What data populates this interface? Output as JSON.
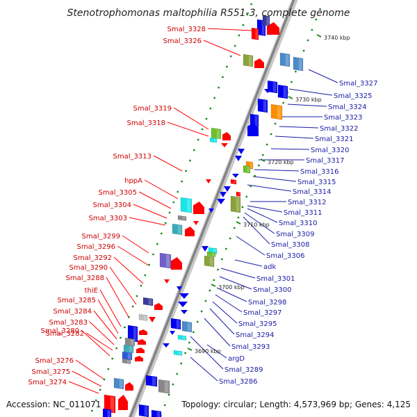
{
  "title": "Stenotrophomonas maltophilia R551-3, complete genome",
  "footer": {
    "accession": "Accession: NC_011071",
    "info": "Topology: circular; Length: 4,573,969 bp; Genes: 4,125"
  },
  "colors": {
    "forward_gene": "#ff0000",
    "reverse_gene": "#0000ee",
    "left_label": "#cc0000",
    "right_label": "#1a1aa6",
    "backbone": "#858585"
  },
  "kbp_markers": [
    "3740 kbp",
    "3730 kbp",
    "3720 kbp",
    "3710 kbp",
    "3700 kbp",
    "3690 kbp"
  ],
  "labels_left": [
    "Smal_3328",
    "Smal_3326",
    "Smal_3319",
    "Smal_3318",
    "Smal_3313",
    "hppA",
    "Smal_3305",
    "Smal_3304",
    "Smal_3303",
    "Smal_3299",
    "Smal_3296",
    "Smal_3292",
    "Smal_3290",
    "Smal_3288",
    "thiE",
    "Smal_3285",
    "Smal_3284",
    "Smal_3283",
    "Smal_3282",
    "Smal_3280",
    "Smal_3276",
    "Smal_3275",
    "Smal_3274"
  ],
  "labels_right": [
    "Smal_3327",
    "Smal_3325",
    "Smal_3324",
    "Smal_3323",
    "Smal_3322",
    "Smal_3321",
    "Smal_3320",
    "Smal_3317",
    "Smal_3316",
    "Smal_3315",
    "Smal_3314",
    "Smal_3312",
    "Smal_3311",
    "Smal_3310",
    "Smal_3309",
    "Smal_3308",
    "Smal_3306",
    "adk",
    "Smal_3301",
    "Smal_3300",
    "Smal_3298",
    "Smal_3297",
    "Smal_3295",
    "Smal_3294",
    "Smal_3293",
    "argD",
    "Smal_3289",
    "Smal_3286"
  ]
}
